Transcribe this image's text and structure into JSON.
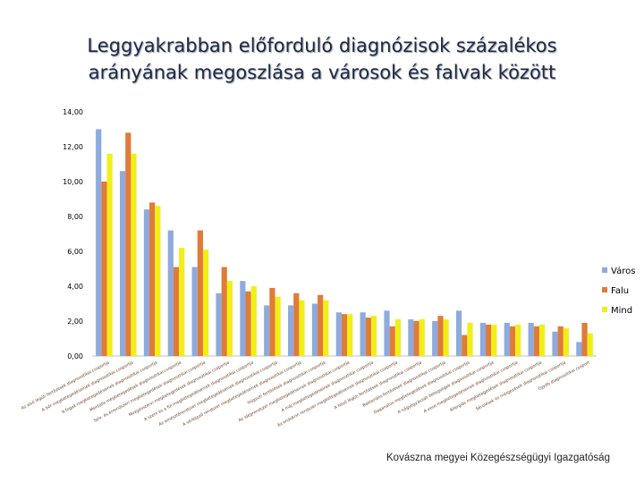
{
  "title_line1": "Leggyakrabban előforduló diagnózisok százalékos",
  "title_line2": "arányának megoszlása a városok és falvak között",
  "source": "Kovászna megyei Közegészségügyi Igazgatóság",
  "colors": {
    "Város": "#8faadc",
    "Falu": "#e07b39",
    "Mind": "#f2ef14"
  },
  "chart_data": {
    "type": "bar",
    "ylim": [
      0,
      14
    ],
    "ytick_labels": [
      "0,00",
      "2,00",
      "4,00",
      "6,00",
      "8,00",
      "10,00",
      "12,00",
      "14,00"
    ],
    "legend_position": "right",
    "grid": false,
    "categories": [
      "Az alsó légúti fertőzések diagnosztikai csoportja",
      "A bőr megbetegedéseinek diagnosztikai csoportja",
      "A fogak megbetegedéseinek diagnosztikai csoportja",
      "Mentális megbetegedések diagnosztikai csoportja",
      "Szív- és érrendszeri megbetegedések diagnosztikai csoportja",
      "Mozgásszervi megbetegedések diagnosztikai csoportja",
      "A szem és a fül megbetegedéseinek diagnosztikai csoportja",
      "Az emésztőrendszer megbetegedéseinek diagnosztikai csoportja",
      "A vérképző rendszer megbetegedéseinek diagnosztikai csoportja",
      "Húgyúti fertőzések diagnosztikai csoportja",
      "Az idegrendszer megbetegedéseinek diagnosztikai csoportja",
      "A máj megbetegedéseinek diagnosztikai csoportja",
      "Az endokrin rendszer megbetegedéseinek diagnosztikai csoportja",
      "A felső légúti fertőzések diagnosztikai csoportja",
      "Bakteriális fertőzések diagnosztikai csoportja",
      "Daganatos megbetegedések diagnosztikai csoportja",
      "A nőgyógyászati betegségek diagnosztikai csoportja",
      "A vese megbetegedéseinek diagnosztikai csoportja",
      "Allergiás megbetegedések diagnosztikai csoportja",
      "Sérülések és mérgezések diagnosztikai csoportja",
      "Egyéb diagnosztikai csoport"
    ],
    "series": [
      {
        "name": "Város",
        "values": [
          13.0,
          10.6,
          8.4,
          7.2,
          5.1,
          3.6,
          4.3,
          2.9,
          2.9,
          3.0,
          2.5,
          2.5,
          2.6,
          2.1,
          2.0,
          2.6,
          1.9,
          1.9,
          1.9,
          1.4,
          0.8
        ]
      },
      {
        "name": "Falu",
        "values": [
          10.0,
          12.8,
          8.8,
          5.1,
          7.2,
          5.1,
          3.7,
          3.9,
          3.6,
          3.5,
          2.4,
          2.2,
          1.7,
          2.0,
          2.3,
          1.2,
          1.8,
          1.7,
          1.7,
          1.7,
          1.9
        ]
      },
      {
        "name": "Mind",
        "values": [
          11.6,
          11.6,
          8.6,
          6.2,
          6.1,
          4.3,
          4.0,
          3.4,
          3.2,
          3.2,
          2.4,
          2.3,
          2.1,
          2.1,
          2.1,
          1.9,
          1.8,
          1.8,
          1.8,
          1.6,
          1.3
        ]
      }
    ]
  }
}
